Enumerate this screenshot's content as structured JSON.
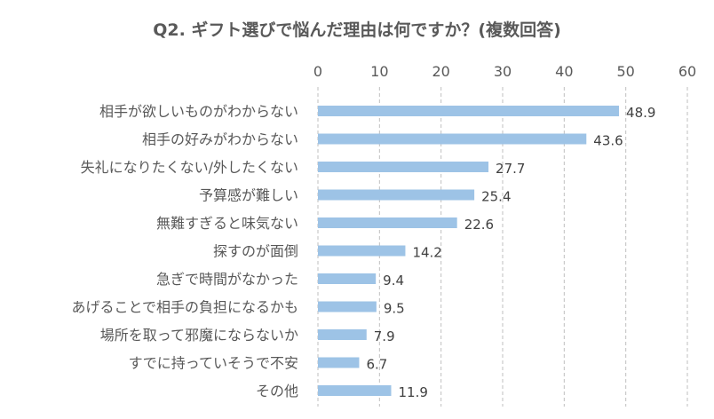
{
  "chart_data": {
    "type": "bar",
    "orientation": "horizontal",
    "title": "Q2. ギフト選びで悩んだ理由は何ですか？(複数回答)",
    "categories": [
      "相手が欲しいものがわからない",
      "相手の好みがわからない",
      "失礼になりたくない/外したくない",
      "予算感が難しい",
      "無難すぎると味気ない",
      "探すのが面倒",
      "急ぎで時間がなかった",
      "あげることで相手の負担になるかも",
      "場所を取って邪魔にならないか",
      "すでに持っていそうで不安",
      "その他"
    ],
    "values": [
      48.9,
      43.6,
      27.7,
      25.4,
      22.6,
      14.2,
      9.4,
      9.5,
      7.9,
      6.7,
      11.9
    ],
    "value_labels": [
      "48.9",
      "43.6",
      "27.7",
      "25.4",
      "22.6",
      "14.2",
      "9.4",
      "9.5",
      "7.9",
      "6.7",
      "11.9"
    ],
    "xlim": [
      0,
      60
    ],
    "xticks": [
      0,
      10,
      20,
      30,
      40,
      50,
      60
    ],
    "axis_position": "top",
    "grid": true,
    "bar_color": "#9dc3e6"
  }
}
